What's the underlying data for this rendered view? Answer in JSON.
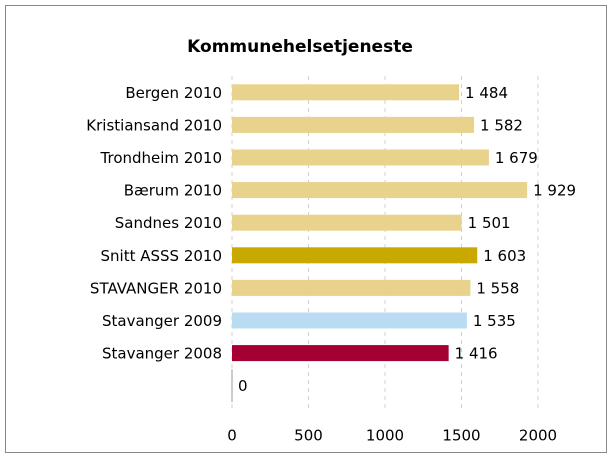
{
  "chart_data": {
    "type": "barh",
    "title": "Kommunehelsetjeneste",
    "categories": [
      "Bergen 2010",
      "Kristiansand 2010",
      "Trondheim 2010",
      "Bærum 2010",
      "Sandnes 2010",
      "Snitt ASSS 2010",
      "STAVANGER 2010",
      "Stavanger 2009",
      "Stavanger 2008",
      null
    ],
    "values": [
      1484,
      1582,
      1679,
      1929,
      1501,
      1603,
      1558,
      1535,
      1416,
      0
    ],
    "value_labels": [
      "1 484",
      "1 582",
      "1 679",
      "1 929",
      "1 501",
      "1 603",
      "1 558",
      "1 535",
      "1 416",
      "0"
    ],
    "colors": [
      "#e8d28c",
      "#e8d28c",
      "#e8d28c",
      "#e8d28c",
      "#e8d28c",
      "#c9a800",
      "#e8d28c",
      "#b9dcf2",
      "#a50034",
      "#e8d28c"
    ],
    "xlim": [
      0,
      2000
    ],
    "xticks": [
      0,
      500,
      1000,
      1500,
      2000
    ],
    "grid": true
  }
}
